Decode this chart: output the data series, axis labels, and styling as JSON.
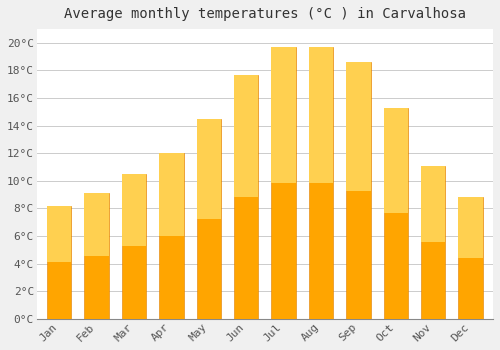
{
  "title": "Average monthly temperatures (°C ) in Carvalhosa",
  "months": [
    "Jan",
    "Feb",
    "Mar",
    "Apr",
    "May",
    "Jun",
    "Jul",
    "Aug",
    "Sep",
    "Oct",
    "Nov",
    "Dec"
  ],
  "values": [
    8.2,
    9.1,
    10.5,
    12.0,
    14.5,
    17.7,
    19.7,
    19.7,
    18.6,
    15.3,
    11.1,
    8.8
  ],
  "bar_color_top": "#FFD050",
  "bar_color_bottom": "#FFA500",
  "bar_edge_color": "#E08000",
  "background_color": "#F0F0F0",
  "plot_bg_color": "#FFFFFF",
  "ylim": [
    0,
    21
  ],
  "ytick_step": 2,
  "grid_color": "#CCCCCC",
  "title_fontsize": 10,
  "tick_fontsize": 8,
  "title_font": "monospace",
  "tick_font": "monospace",
  "bar_width": 0.65
}
